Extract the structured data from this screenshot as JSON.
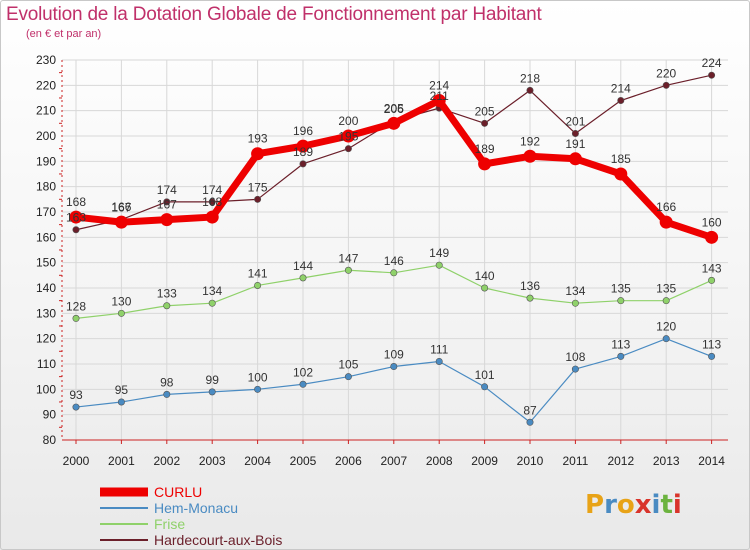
{
  "header": {
    "title": "Evolution de la Dotation Globale de Fonctionnement par Habitant",
    "subtitle": "(en € et par an)"
  },
  "brand": {
    "logo_text": "Proxiti",
    "letters": [
      "P",
      "r",
      "o",
      "x",
      "i",
      "t",
      "i"
    ],
    "colors": [
      "#e8a317",
      "#4a8bc2",
      "#e8a317",
      "#d9342b",
      "#4a8bc2",
      "#6cb33f",
      "#d9342b"
    ]
  },
  "chart_data": {
    "type": "line",
    "title": "Evolution de la Dotation Globale de Fonctionnement par Habitant",
    "subtitle": "(en € et par an)",
    "xlabel": "",
    "ylabel": "",
    "ylim": [
      80,
      230
    ],
    "yticks": [
      80,
      90,
      100,
      110,
      120,
      130,
      140,
      150,
      160,
      170,
      180,
      190,
      200,
      210,
      220,
      230
    ],
    "categories": [
      "2000",
      "2001",
      "2002",
      "2003",
      "2004",
      "2005",
      "2006",
      "2007",
      "2008",
      "2009",
      "2010",
      "2011",
      "2012",
      "2013",
      "2014"
    ],
    "series": [
      {
        "name": "CURLU",
        "color": "#ee0000",
        "values": [
          168,
          166,
          167,
          168,
          193,
          196,
          200,
          205,
          214,
          189,
          192,
          191,
          185,
          166,
          160
        ]
      },
      {
        "name": "Hem-Monacu",
        "color": "#4a8bc2",
        "values": [
          93,
          95,
          98,
          99,
          100,
          102,
          105,
          109,
          111,
          101,
          87,
          108,
          113,
          120,
          113
        ]
      },
      {
        "name": "Frise",
        "color": "#8fd16a",
        "values": [
          128,
          130,
          133,
          134,
          141,
          144,
          147,
          146,
          149,
          140,
          136,
          134,
          135,
          135,
          143
        ]
      },
      {
        "name": "Hardecourt-aux-Bois",
        "color": "#6b1f2a",
        "values": [
          163,
          167,
          174,
          174,
          175,
          189,
          195,
          206,
          211,
          205,
          218,
          201,
          214,
          220,
          224
        ]
      }
    ],
    "legend_position": "bottom-left"
  }
}
